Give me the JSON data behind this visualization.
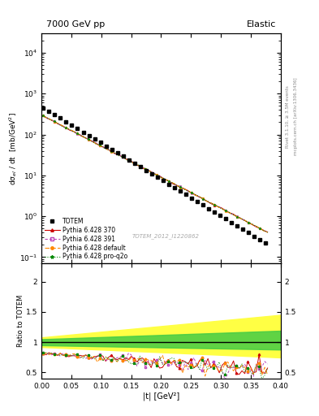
{
  "title_left": "7000 GeV pp",
  "title_right": "Elastic",
  "ylabel_main": "dσ$_{el}$ / dt  [mb/GeV$^2$]",
  "ylabel_ratio": "Ratio to TOTEM",
  "xlabel": "|t| [GeV²]",
  "right_label_top": "Rivet 3.1.10, ≥ 3.5M events",
  "right_label_bot": "mcplots.cern.ch [arXiv:1306.3436]",
  "watermark": "TOTEM_2012_I1220862",
  "xlim": [
    0.0,
    0.4
  ],
  "ylim_main": [
    0.07,
    30000
  ],
  "ylim_ratio": [
    0.4,
    2.3
  ],
  "ratio_yticks": [
    0.5,
    1.0,
    1.5,
    2.0
  ],
  "totem_color": "#000000",
  "p370_color": "#cc0000",
  "p391_color": "#bb44bb",
  "pdefault_color": "#ff8800",
  "pproq2o_color": "#008800",
  "band_yellow": "#ffff44",
  "band_green": "#44cc44"
}
